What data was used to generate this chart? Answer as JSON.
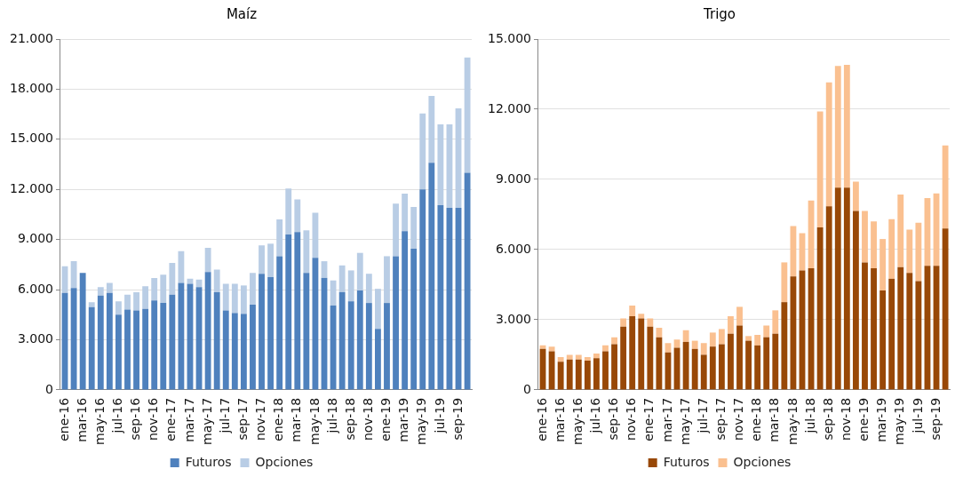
{
  "chart_data": [
    {
      "type": "bar",
      "title": "Maíz",
      "stacked": true,
      "grid": "y",
      "legend": "bottom",
      "categories": [
        "ene-16",
        null,
        "mar-16",
        null,
        "may-16",
        null,
        "jul-16",
        null,
        "sep-16",
        null,
        "nov-16",
        null,
        "ene-17",
        null,
        "mar-17",
        null,
        "may-17",
        null,
        "jul-17",
        null,
        "sep-17",
        null,
        "nov-17",
        null,
        "ene-18",
        null,
        "mar-18",
        null,
        "may-18",
        null,
        "jul-18",
        null,
        "sep-18",
        null,
        "nov-18",
        null,
        "ene-19",
        null,
        "mar-19",
        null,
        "may-19",
        null,
        "jul-19",
        null,
        "sep-19",
        null
      ],
      "series": [
        {
          "name": "Futuros",
          "color": "#4f81bd",
          "values": [
            5800,
            6100,
            7000,
            4950,
            5650,
            5800,
            4500,
            4800,
            4750,
            4850,
            5350,
            5200,
            5700,
            6400,
            6350,
            6150,
            7050,
            5850,
            4750,
            4600,
            4550,
            5100,
            6950,
            6750,
            8000,
            9300,
            9450,
            7000,
            7900,
            6700,
            5050,
            5850,
            5300,
            5950,
            5200,
            3650,
            5200,
            8000,
            9500,
            8450,
            12000,
            13600,
            11050,
            10900,
            10900,
            13000
          ]
        },
        {
          "name": "Opciones",
          "color": "#b9cde5",
          "values": [
            1600,
            1600,
            0,
            300,
            500,
            600,
            800,
            900,
            1100,
            1350,
            1350,
            1700,
            1900,
            1900,
            300,
            450,
            1450,
            1350,
            1600,
            1750,
            1700,
            1900,
            1700,
            2000,
            2200,
            2750,
            1950,
            2550,
            2700,
            1000,
            1500,
            1600,
            1850,
            2250,
            1750,
            2400,
            2800,
            3150,
            2250,
            2500,
            4550,
            4000,
            4850,
            5000,
            5950,
            6900
          ]
        }
      ],
      "ylim": [
        0,
        21000
      ],
      "yticks": [
        {
          "value": 0,
          "label": "0"
        },
        {
          "value": 3000,
          "label": "3.000"
        },
        {
          "value": 6000,
          "label": "6.000"
        },
        {
          "value": 9000,
          "label": "9.000"
        },
        {
          "value": 12000,
          "label": "12.000"
        },
        {
          "value": 15000,
          "label": "15.000"
        },
        {
          "value": 18000,
          "label": "18.000"
        },
        {
          "value": 21000,
          "label": "21.000"
        }
      ]
    },
    {
      "type": "bar",
      "title": "Trigo",
      "stacked": true,
      "grid": "y",
      "legend": "bottom",
      "categories": [
        "ene-16",
        null,
        "mar-16",
        null,
        "may-16",
        null,
        "jul-16",
        null,
        "sep-16",
        null,
        "nov-16",
        null,
        "ene-17",
        null,
        "mar-17",
        null,
        "may-17",
        null,
        "jul-17",
        null,
        "sep-17",
        null,
        "nov-17",
        null,
        "ene-18",
        null,
        "mar-18",
        null,
        "may-18",
        null,
        "jul-18",
        null,
        "sep-18",
        null,
        "nov-18",
        null,
        "ene-19",
        null,
        "mar-19",
        null,
        "may-19",
        null,
        "jul-19",
        null,
        "sep-19",
        null
      ],
      "series": [
        {
          "name": "Futuros",
          "color": "#984807",
          "values": [
            1750,
            1650,
            1200,
            1300,
            1300,
            1250,
            1350,
            1650,
            1950,
            2700,
            3150,
            3050,
            2700,
            2250,
            1600,
            1800,
            2050,
            1750,
            1500,
            1850,
            1950,
            2400,
            2750,
            2100,
            1900,
            2250,
            2400,
            3750,
            4850,
            5100,
            5200,
            6950,
            7850,
            8650,
            8650,
            7650,
            5450,
            5200,
            4250,
            4750,
            5250,
            5000,
            4650,
            5300,
            5300,
            6900
          ]
        },
        {
          "name": "Opciones",
          "color": "#fac090",
          "values": [
            150,
            200,
            200,
            200,
            200,
            150,
            200,
            250,
            300,
            350,
            450,
            200,
            350,
            400,
            400,
            350,
            500,
            350,
            500,
            600,
            650,
            750,
            800,
            200,
            450,
            500,
            1000,
            1700,
            2150,
            1600,
            2900,
            4950,
            5300,
            5200,
            5250,
            1250,
            2200,
            2000,
            2200,
            2550,
            3100,
            1850,
            2500,
            2900,
            3100,
            3550
          ]
        }
      ],
      "ylim": [
        0,
        15000
      ],
      "yticks": [
        {
          "value": 0,
          "label": "0"
        },
        {
          "value": 3000,
          "label": "3.000"
        },
        {
          "value": 6000,
          "label": "6.000"
        },
        {
          "value": 9000,
          "label": "9.000"
        },
        {
          "value": 12000,
          "label": "12.000"
        },
        {
          "value": 15000,
          "label": "15.000"
        }
      ]
    }
  ]
}
